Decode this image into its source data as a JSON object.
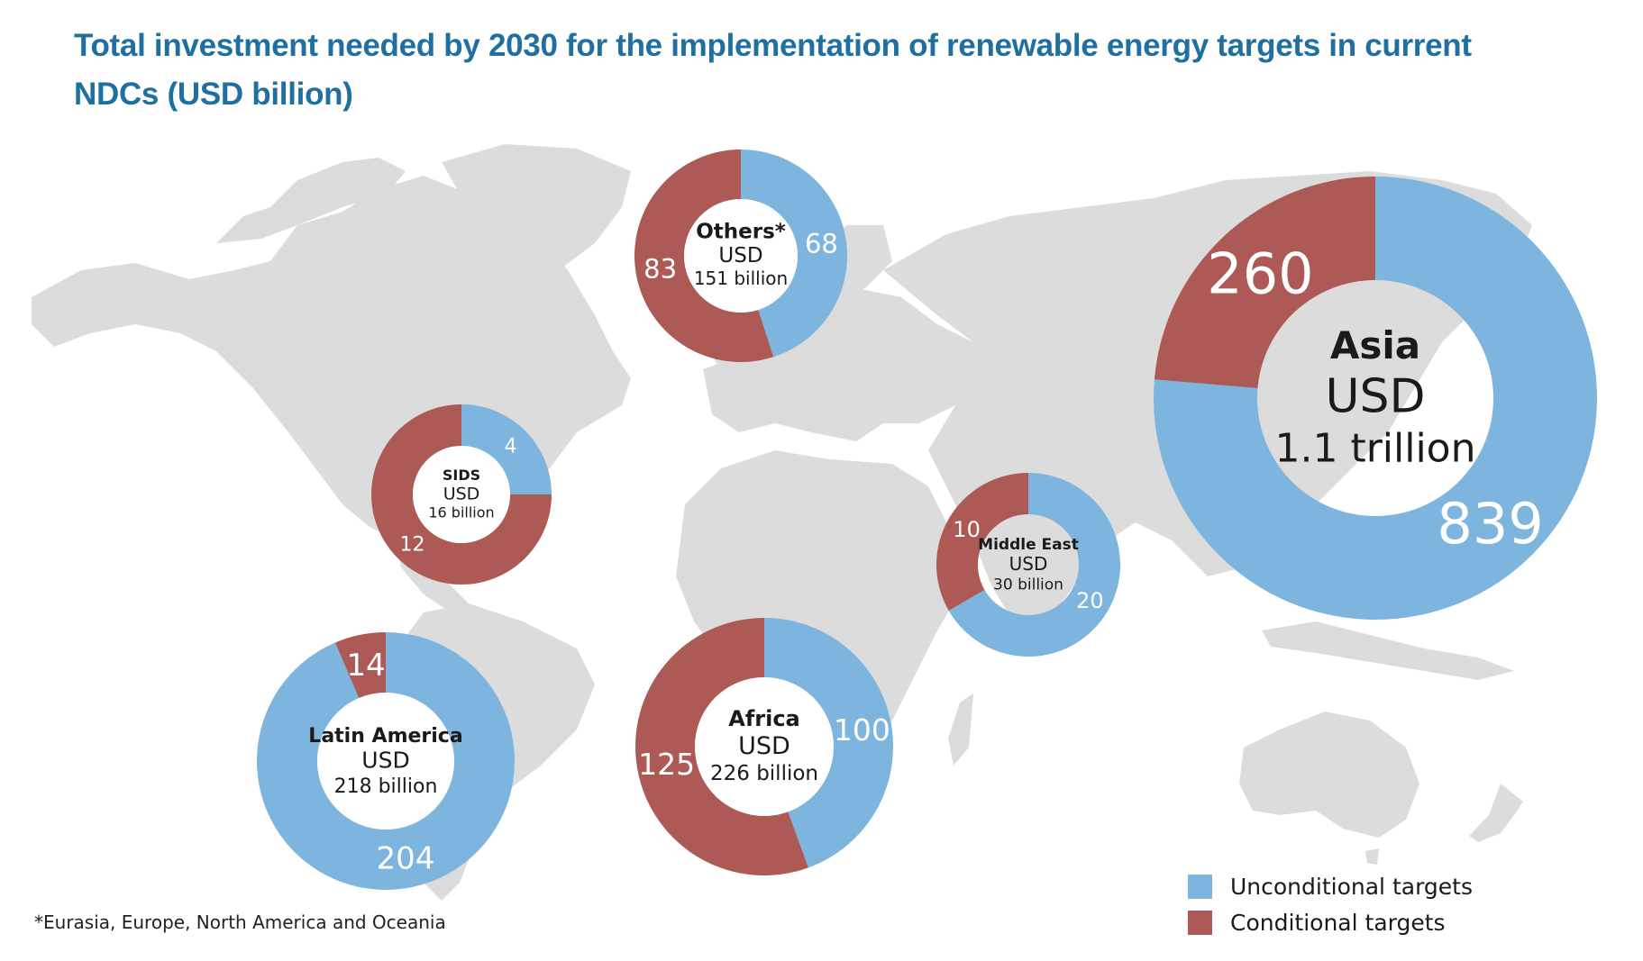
{
  "title": "Total investment needed by 2030 for the implementation of renewable energy targets in current NDCs (USD billion)",
  "footnote": "*Eurasia, Europe, North America and Oceania",
  "colors": {
    "unconditional": "#7db5df",
    "conditional": "#ad5a57",
    "map": "#dcdcdc",
    "title": "#1f6fa0"
  },
  "legend": [
    {
      "label": "Unconditional targets",
      "color": "#7db5df"
    },
    {
      "label": "Conditional targets",
      "color": "#ad5a57"
    }
  ],
  "chart_data": {
    "type": "pie",
    "subtype": "donut-on-map",
    "title": "Total investment needed by 2030 for the implementation of renewable energy targets in current NDCs (USD billion)",
    "units": "USD billion",
    "series_names": [
      "Unconditional targets",
      "Conditional targets"
    ],
    "regions": [
      {
        "id": "others",
        "name": "Others*",
        "currency": "USD",
        "total_label": "151 billion",
        "unconditional": 68,
        "conditional": 83
      },
      {
        "id": "asia",
        "name": "Asia",
        "currency": "USD",
        "total_label": "1.1 trillion",
        "unconditional": 839,
        "conditional": 260
      },
      {
        "id": "sids",
        "name": "SIDS",
        "currency": "USD",
        "total_label": "16 billion",
        "unconditional": 4,
        "conditional": 12
      },
      {
        "id": "middle-east",
        "name": "Middle East",
        "currency": "USD",
        "total_label": "30 billion",
        "unconditional": 20,
        "conditional": 10
      },
      {
        "id": "africa",
        "name": "Africa",
        "currency": "USD",
        "total_label": "226 billion",
        "unconditional": 100,
        "conditional": 125
      },
      {
        "id": "latin-america",
        "name": "Latin America",
        "currency": "USD",
        "total_label": "218 billion",
        "unconditional": 204,
        "conditional": 14
      }
    ],
    "legend_position": "bottom-right",
    "footnote": "*Eurasia, Europe, North America and Oceania"
  }
}
